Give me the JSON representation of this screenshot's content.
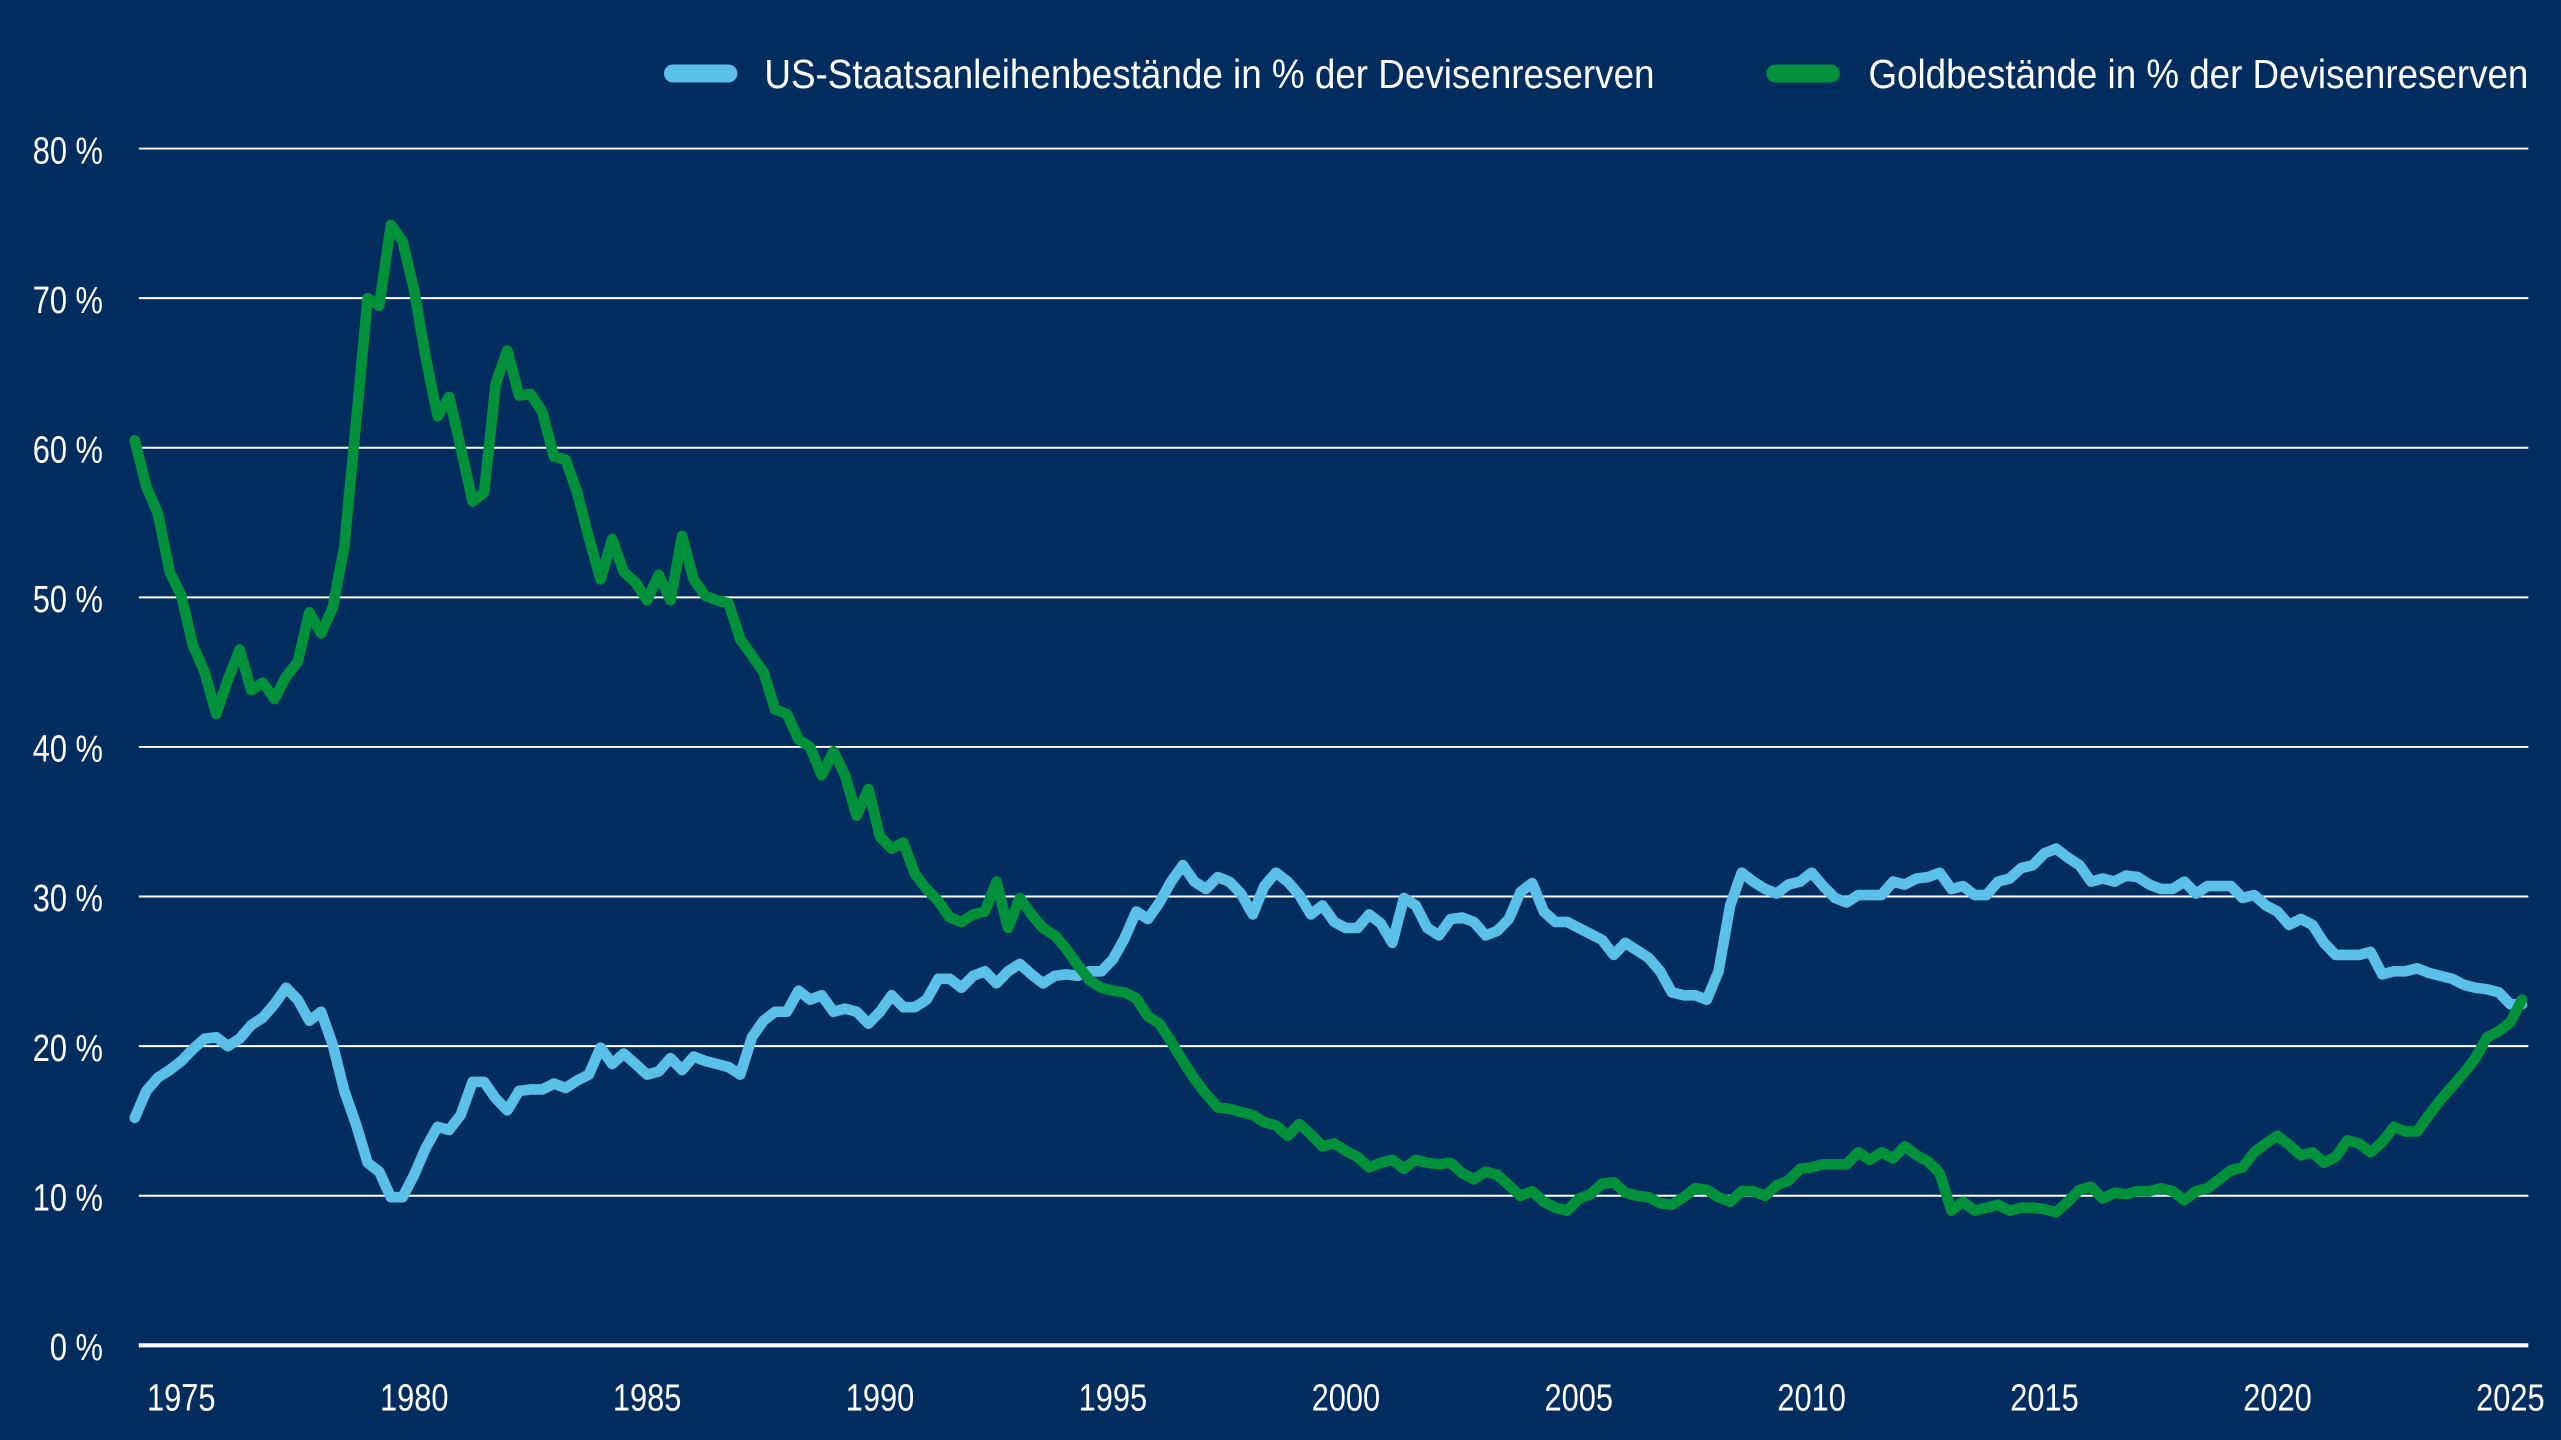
{
  "chart_data": {
    "type": "line",
    "title": "",
    "xlabel": "",
    "ylabel": "",
    "ylim": [
      0,
      80
    ],
    "xlim": [
      1974,
      2025.4
    ],
    "grid": "horizontal",
    "legend_position": "top-right",
    "y_ticks": [
      "0 %",
      "10 %",
      "20 %",
      "30 %",
      "40 %",
      "50 %",
      "60 %",
      "70 %",
      "80 %"
    ],
    "y_tick_values": [
      0,
      10,
      20,
      30,
      40,
      50,
      60,
      70,
      80
    ],
    "x_ticks": [
      "1975",
      "1980",
      "1985",
      "1990",
      "1995",
      "2000",
      "2005",
      "2010",
      "2015",
      "2020",
      "2025"
    ],
    "x_tick_values": [
      1975,
      1980,
      1985,
      1990,
      1995,
      2000,
      2005,
      2010,
      2015,
      2020,
      2025
    ],
    "x": [
      1974.0,
      1974.25,
      1974.5,
      1974.75,
      1975.0,
      1975.25,
      1975.5,
      1975.75,
      1976.0,
      1976.25,
      1976.5,
      1976.75,
      1977.0,
      1977.25,
      1977.5,
      1977.75,
      1978.0,
      1978.25,
      1978.5,
      1978.75,
      1979.0,
      1979.25,
      1979.5,
      1979.75,
      1980.0,
      1980.25,
      1980.5,
      1980.75,
      1981.0,
      1981.25,
      1981.5,
      1981.75,
      1982.0,
      1982.25,
      1982.5,
      1982.75,
      1983.0,
      1983.25,
      1983.5,
      1983.75,
      1984.0,
      1984.25,
      1984.5,
      1984.75,
      1985.0,
      1985.25,
      1985.5,
      1985.75,
      1986.0,
      1986.25,
      1986.5,
      1986.75,
      1987.0,
      1987.25,
      1987.5,
      1987.75,
      1988.0,
      1988.25,
      1988.5,
      1988.75,
      1989.0,
      1989.25,
      1989.5,
      1989.75,
      1990.0,
      1990.25,
      1990.5,
      1990.75,
      1991.0,
      1991.25,
      1991.5,
      1991.75,
      1992.0,
      1992.25,
      1992.5,
      1992.75,
      1993.0,
      1993.25,
      1993.5,
      1993.75,
      1994.0,
      1994.25,
      1994.5,
      1994.75,
      1995.0,
      1995.25,
      1995.5,
      1995.75,
      1996.0,
      1996.25,
      1996.5,
      1996.75,
      1997.0,
      1997.25,
      1997.5,
      1997.75,
      1998.0,
      1998.25,
      1998.5,
      1998.75,
      1999.0,
      1999.25,
      1999.5,
      1999.75,
      2000.0,
      2000.25,
      2000.5,
      2000.75,
      2001.0,
      2001.25,
      2001.5,
      2001.75,
      2002.0,
      2002.25,
      2002.5,
      2002.75,
      2003.0,
      2003.25,
      2003.5,
      2003.75,
      2004.0,
      2004.25,
      2004.5,
      2004.75,
      2005.0,
      2005.25,
      2005.5,
      2005.75,
      2006.0,
      2006.25,
      2006.5,
      2006.75,
      2007.0,
      2007.25,
      2007.5,
      2007.75,
      2008.0,
      2008.25,
      2008.5,
      2008.75,
      2009.0,
      2009.25,
      2009.5,
      2009.75,
      2010.0,
      2010.25,
      2010.5,
      2010.75,
      2011.0,
      2011.25,
      2011.5,
      2011.75,
      2012.0,
      2012.25,
      2012.5,
      2012.75,
      2013.0,
      2013.25,
      2013.5,
      2013.75,
      2014.0,
      2014.25,
      2014.5,
      2014.75,
      2015.0,
      2015.25,
      2015.5,
      2015.75,
      2016.0,
      2016.25,
      2016.5,
      2016.75,
      2017.0,
      2017.25,
      2017.5,
      2017.75,
      2018.0,
      2018.25,
      2018.5,
      2018.75,
      2019.0,
      2019.25,
      2019.5,
      2019.75,
      2020.0,
      2020.25,
      2020.5,
      2020.75,
      2021.0,
      2021.25,
      2021.5,
      2021.75,
      2022.0,
      2022.25,
      2022.5,
      2022.75,
      2023.0,
      2023.25,
      2023.5,
      2023.75,
      2024.0,
      2024.25,
      2024.5,
      2024.75,
      2025.0,
      2025.25
    ],
    "series": [
      {
        "name": "US-Staatsanleihenbestände in % der Devisenreserven",
        "color": "#5bc0e8",
        "values": [
          15.2,
          17.0,
          17.9,
          18.4,
          19.0,
          19.8,
          20.5,
          20.6,
          20.0,
          20.5,
          21.4,
          21.9,
          22.8,
          23.9,
          23.1,
          21.7,
          22.3,
          20.1,
          17.0,
          14.8,
          12.2,
          11.6,
          9.9,
          9.9,
          11.4,
          13.2,
          14.6,
          14.4,
          15.4,
          17.6,
          17.6,
          16.5,
          15.7,
          17.0,
          17.1,
          17.1,
          17.5,
          17.2,
          17.7,
          18.1,
          19.9,
          18.8,
          19.5,
          18.8,
          18.1,
          18.3,
          19.2,
          18.4,
          19.3,
          19.0,
          18.8,
          18.6,
          18.1,
          20.6,
          21.7,
          22.3,
          22.3,
          23.7,
          23.1,
          23.4,
          22.3,
          22.5,
          22.3,
          21.5,
          22.3,
          23.4,
          22.6,
          22.6,
          23.1,
          24.5,
          24.5,
          23.9,
          24.7,
          25.0,
          24.2,
          25.0,
          25.5,
          24.8,
          24.2,
          24.7,
          24.8,
          24.7,
          25.0,
          25.0,
          25.8,
          27.2,
          29.0,
          28.5,
          29.6,
          31.0,
          32.1,
          31.0,
          30.5,
          31.3,
          31.0,
          30.2,
          28.8,
          30.7,
          31.6,
          31.0,
          30.1,
          28.8,
          29.4,
          28.3,
          27.9,
          27.9,
          28.8,
          28.2,
          26.9,
          29.9,
          29.4,
          27.9,
          27.4,
          28.5,
          28.6,
          28.3,
          27.4,
          27.7,
          28.5,
          30.3,
          30.9,
          29.0,
          28.3,
          28.3,
          27.9,
          27.5,
          27.1,
          26.1,
          26.9,
          26.4,
          25.9,
          25.0,
          23.6,
          23.4,
          23.4,
          23.1,
          25.0,
          29.4,
          31.6,
          31.0,
          30.5,
          30.2,
          30.8,
          31.0,
          31.6,
          30.7,
          29.9,
          29.6,
          30.1,
          30.1,
          30.1,
          31.0,
          30.8,
          31.2,
          31.3,
          31.6,
          30.5,
          30.7,
          30.1,
          30.1,
          31.0,
          31.2,
          31.9,
          32.1,
          32.9,
          33.2,
          32.6,
          32.1,
          31.0,
          31.2,
          31.0,
          31.4,
          31.3,
          30.8,
          30.5,
          30.5,
          31.0,
          30.2,
          30.7,
          30.7,
          30.7,
          29.9,
          30.1,
          29.4,
          29.0,
          28.1,
          28.5,
          28.1,
          26.9,
          26.1,
          26.1,
          26.1,
          26.3,
          24.8,
          25.0,
          25.0,
          25.2,
          24.9,
          24.7,
          24.5,
          24.1,
          23.9,
          23.8,
          23.6,
          22.8,
          22.8
        ]
      },
      {
        "name": "Goldbestände in % der Devisenreserven",
        "color": "#00913a",
        "values": [
          60.5,
          57.4,
          55.6,
          51.7,
          50.1,
          46.8,
          45.0,
          42.2,
          44.5,
          46.5,
          43.8,
          44.3,
          43.2,
          44.7,
          45.7,
          49.0,
          47.6,
          49.3,
          53.4,
          61.6,
          70.0,
          69.5,
          74.9,
          73.8,
          70.5,
          66.0,
          62.1,
          63.4,
          60.0,
          56.4,
          57.0,
          64.3,
          66.5,
          63.5,
          63.6,
          62.4,
          59.4,
          59.2,
          57.0,
          54.0,
          51.2,
          53.9,
          51.7,
          51.0,
          49.8,
          51.5,
          49.8,
          54.1,
          51.2,
          50.1,
          49.8,
          49.6,
          47.2,
          46.1,
          45.0,
          42.5,
          42.2,
          40.5,
          40.0,
          38.1,
          39.7,
          38.1,
          35.4,
          37.2,
          34.0,
          33.2,
          33.6,
          31.5,
          30.5,
          29.7,
          28.6,
          28.3,
          28.8,
          29.0,
          31.0,
          27.9,
          29.9,
          28.8,
          27.9,
          27.4,
          26.5,
          25.4,
          24.4,
          23.9,
          23.7,
          23.6,
          23.2,
          22.0,
          21.5,
          20.3,
          19.0,
          17.8,
          16.8,
          15.9,
          15.8,
          15.6,
          15.4,
          14.9,
          14.7,
          14.0,
          14.8,
          14.1,
          13.3,
          13.5,
          13.0,
          12.6,
          11.9,
          12.2,
          12.4,
          11.8,
          12.4,
          12.2,
          12.1,
          12.2,
          11.5,
          11.1,
          11.6,
          11.4,
          10.7,
          10.0,
          10.3,
          9.6,
          9.2,
          9.0,
          9.8,
          10.1,
          10.8,
          10.9,
          10.2,
          10.0,
          9.9,
          9.5,
          9.4,
          9.9,
          10.5,
          10.4,
          9.9,
          9.6,
          10.3,
          10.3,
          10.0,
          10.7,
          11.0,
          11.8,
          11.9,
          12.1,
          12.1,
          12.1,
          12.9,
          12.4,
          12.9,
          12.5,
          13.3,
          12.7,
          12.3,
          11.5,
          9.0,
          9.6,
          9.0,
          9.2,
          9.4,
          9.0,
          9.2,
          9.2,
          9.1,
          8.9,
          9.6,
          10.4,
          10.6,
          9.8,
          10.2,
          10.1,
          10.3,
          10.3,
          10.5,
          10.3,
          9.7,
          10.3,
          10.5,
          11.1,
          11.7,
          11.9,
          12.9,
          13.5,
          14.0,
          13.4,
          12.7,
          12.9,
          12.2,
          12.6,
          13.7,
          13.5,
          12.9,
          13.6,
          14.6,
          14.3,
          14.3,
          15.4,
          16.4,
          17.3,
          18.2,
          19.2,
          20.6,
          21.0,
          21.6,
          23.1
        ]
      }
    ]
  }
}
